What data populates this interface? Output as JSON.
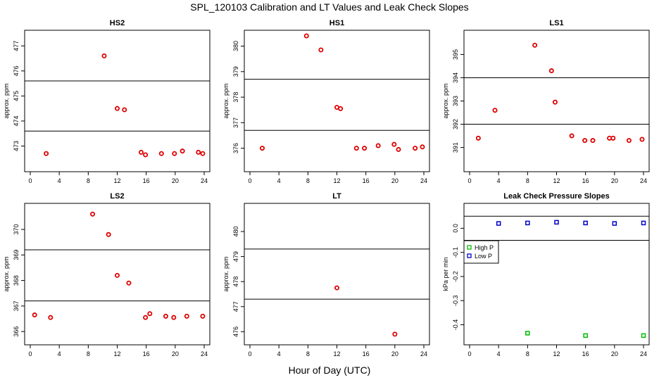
{
  "title": "SPL_120103  Calibration and LT Values and Leak Check Slopes",
  "x_label": "Hour of Day (UTC)",
  "colors": {
    "cal_point": "#dd0000",
    "high_p": "#00bb00",
    "low_p": "#0000cc",
    "frame": "#000000"
  },
  "chart_data": [
    {
      "type": "scatter",
      "title": "HS2",
      "ylabel": "approx. ppm",
      "xlim": [
        0,
        24
      ],
      "ylim": [
        472.2,
        477.4
      ],
      "xticks": [
        0,
        4,
        8,
        12,
        16,
        20,
        24
      ],
      "yticks": [
        472,
        473,
        474,
        475,
        476,
        477
      ],
      "hlines": [
        473.6,
        475.6
      ],
      "series": [
        {
          "name": "cal",
          "color": "#dd0000",
          "x": [
            2.2,
            10.2,
            12.0,
            13.0,
            15.3,
            15.9,
            18.1,
            19.9,
            21.0,
            23.2,
            23.8
          ],
          "y": [
            472.7,
            476.6,
            474.5,
            474.45,
            472.75,
            472.65,
            472.7,
            472.7,
            472.8,
            472.75,
            472.7
          ]
        }
      ]
    },
    {
      "type": "scatter",
      "title": "HS1",
      "ylabel": "approx. ppm",
      "xlim": [
        0,
        24
      ],
      "ylim": [
        375.3,
        380.4
      ],
      "xticks": [
        0,
        4,
        8,
        12,
        16,
        20,
        24
      ],
      "yticks": [
        376,
        377,
        378,
        379,
        380
      ],
      "hlines": [
        376.7,
        378.7
      ],
      "series": [
        {
          "name": "cal",
          "color": "#dd0000",
          "x": [
            1.7,
            7.8,
            9.8,
            12.0,
            12.5,
            14.7,
            15.8,
            17.7,
            19.9,
            20.5,
            22.8,
            23.8
          ],
          "y": [
            376.0,
            380.4,
            379.85,
            377.6,
            377.55,
            376.0,
            376.0,
            376.1,
            376.15,
            375.95,
            376.0,
            376.05
          ]
        }
      ]
    },
    {
      "type": "scatter",
      "title": "LS1",
      "ylabel": "approx. ppm",
      "xlim": [
        0,
        24
      ],
      "ylim": [
        390.2,
        395.8
      ],
      "xticks": [
        0,
        4,
        8,
        12,
        16,
        20,
        24
      ],
      "yticks": [
        391,
        392,
        393,
        394,
        395
      ],
      "hlines": [
        392.0,
        394.0
      ],
      "series": [
        {
          "name": "cal",
          "color": "#dd0000",
          "x": [
            1.2,
            3.5,
            9.0,
            11.3,
            11.8,
            14.1,
            15.9,
            17.0,
            19.3,
            19.8,
            22.0,
            23.8
          ],
          "y": [
            391.4,
            392.6,
            395.4,
            394.3,
            392.95,
            391.5,
            391.3,
            391.3,
            391.4,
            391.4,
            391.3,
            391.35
          ]
        }
      ]
    },
    {
      "type": "scatter",
      "title": "LS2",
      "ylabel": "approx. ppm",
      "xlim": [
        0,
        24
      ],
      "ylim": [
        365.7,
        370.8
      ],
      "xticks": [
        0,
        4,
        8,
        12,
        16,
        20,
        24
      ],
      "yticks": [
        366,
        367,
        368,
        369,
        370
      ],
      "hlines": [
        367.2,
        369.2
      ],
      "series": [
        {
          "name": "cal",
          "color": "#dd0000",
          "x": [
            0.6,
            2.8,
            8.6,
            10.8,
            12.0,
            13.6,
            15.9,
            16.5,
            18.7,
            19.8,
            21.6,
            23.8
          ],
          "y": [
            366.65,
            366.55,
            370.6,
            369.8,
            368.2,
            367.9,
            366.55,
            366.7,
            366.6,
            366.55,
            366.6,
            366.6
          ]
        }
      ]
    },
    {
      "type": "scatter",
      "title": "LT",
      "ylabel": "approx. ppm",
      "xlim": [
        0,
        24
      ],
      "ylim": [
        475.7,
        480.9
      ],
      "xticks": [
        0,
        4,
        8,
        12,
        16,
        20,
        24
      ],
      "yticks": [
        476,
        477,
        478,
        479,
        480
      ],
      "hlines": [
        477.3,
        479.3
      ],
      "series": [
        {
          "name": "cal",
          "color": "#dd0000",
          "x": [
            12.0,
            20.0
          ],
          "y": [
            477.75,
            475.9
          ]
        }
      ]
    },
    {
      "type": "scatter",
      "title": "Leak Check Pressure Slopes",
      "ylabel": "kPa per min",
      "xlim": [
        0,
        24
      ],
      "ylim": [
        -0.46,
        0.08
      ],
      "xticks": [
        0,
        4,
        8,
        12,
        16,
        20,
        24
      ],
      "yticks": [
        -0.4,
        -0.3,
        -0.2,
        -0.1,
        0.0
      ],
      "ytick_labels": [
        "-0.4",
        "-0.3",
        "-0.2",
        "-0.1",
        "0.0"
      ],
      "hlines": [
        -0.05,
        0.05
      ],
      "legend": {
        "position": "left",
        "entries": [
          "High P",
          "Low P"
        ]
      },
      "series": [
        {
          "name": "High P",
          "color": "#00bb00",
          "x": [
            8,
            16,
            24
          ],
          "y": [
            -0.435,
            -0.445,
            -0.445
          ]
        },
        {
          "name": "Low P",
          "color": "#0000cc",
          "x": [
            4,
            8,
            12,
            16,
            20,
            24
          ],
          "y": [
            0.02,
            0.022,
            0.025,
            0.022,
            0.02,
            0.022
          ]
        }
      ]
    }
  ]
}
